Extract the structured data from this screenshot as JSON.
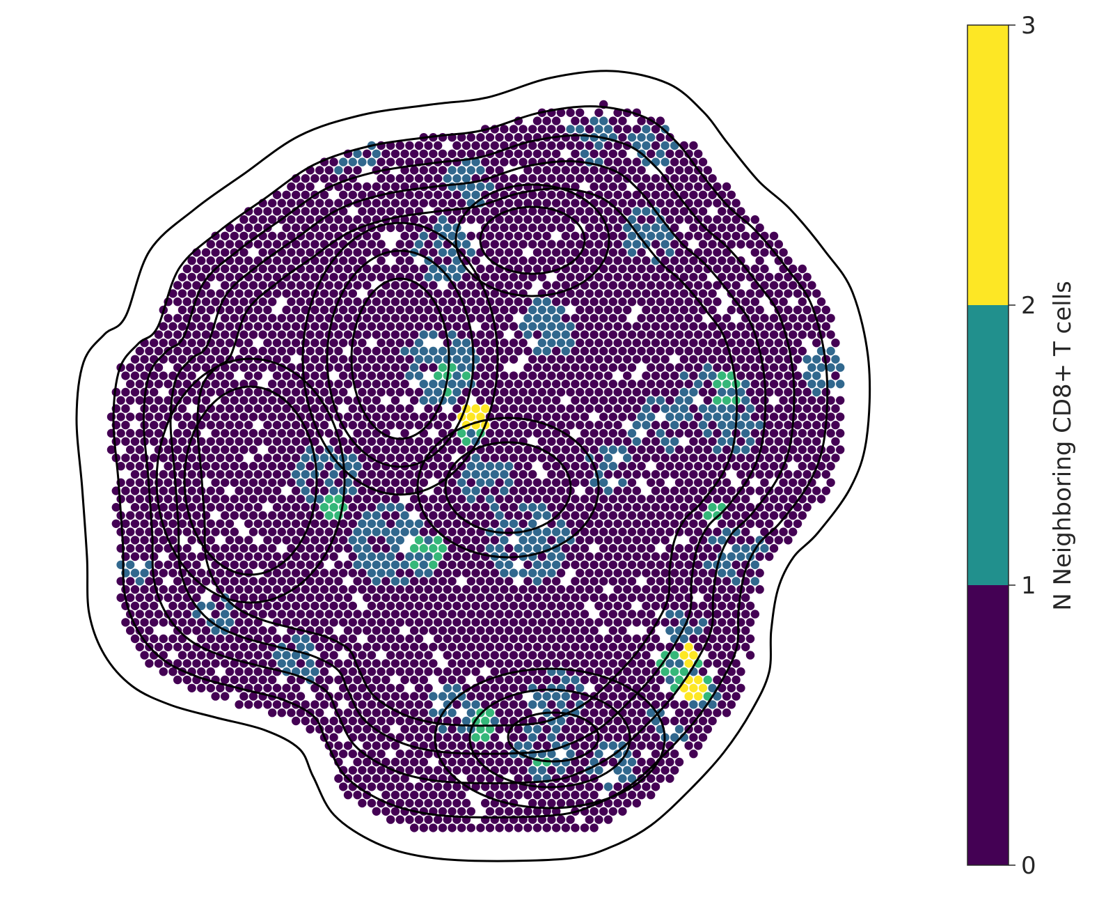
{
  "chart_data": {
    "type": "scatter",
    "title": "",
    "xlabel": "",
    "ylabel": "",
    "axes_visible": false,
    "grid": false,
    "marker": "filled circle",
    "layout": "hexagonal spot grid (spatial transcriptomics)",
    "overlay": "black density contour lines (kde), 9 nested levels",
    "color_map": "viridis",
    "colorbar": {
      "label": "N Neighboring CD8+ T cells",
      "ticks": [
        0,
        1,
        2,
        3
      ],
      "tick_labels": [
        "0",
        "1",
        "2",
        "3"
      ],
      "range": [
        0,
        3
      ],
      "placement": "right",
      "bins": [
        {
          "range": [
            0,
            1
          ],
          "value": 0,
          "color": "#440154"
        },
        {
          "range": [
            1,
            2
          ],
          "value": 1,
          "color": "#21908d"
        },
        {
          "range": [
            2,
            3
          ],
          "value": 3,
          "color": "#fde725"
        }
      ]
    },
    "category_colors": {
      "0": "#440154",
      "1": "#31688e",
      "2": "#35b779",
      "3": "#fde725"
    },
    "series": [
      {
        "value": 0,
        "color": "#440154",
        "description": "majority of spots"
      },
      {
        "value": 1,
        "color": "#31688e",
        "regions": [
          {
            "cx": 0.0,
            "cy": 0.0
          }
        ]
      },
      {
        "value": 2,
        "color": "#35b779"
      },
      {
        "value": 3,
        "color": "#fde725"
      }
    ]
  }
}
